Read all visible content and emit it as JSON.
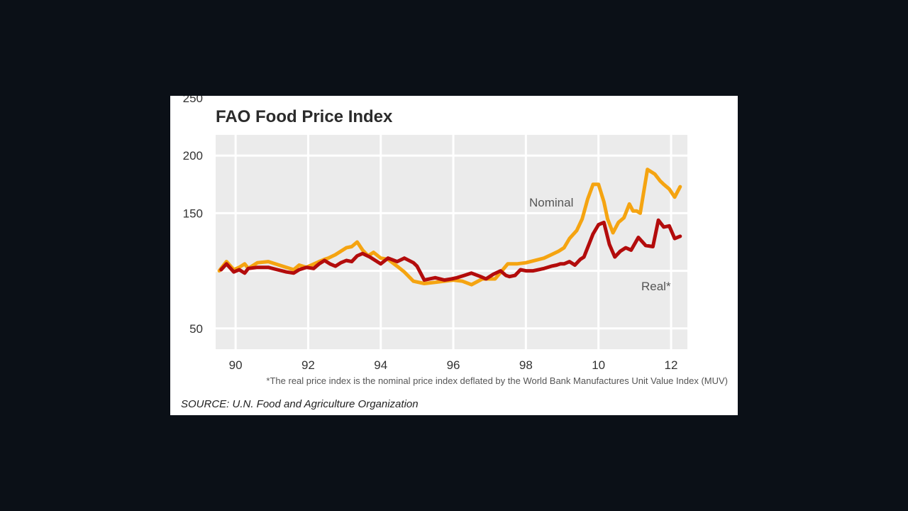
{
  "chart_data": {
    "type": "line",
    "title": "FAO Food Price Index",
    "xlabel": "",
    "ylabel": "",
    "x_tick_labels": [
      "90",
      "92",
      "94",
      "96",
      "98",
      "10",
      "12"
    ],
    "x_tick_years": [
      1990,
      1992,
      1994,
      1996,
      1998,
      2000,
      2002
    ],
    "y_ticks": [
      50,
      100,
      150,
      200,
      250
    ],
    "y_tick_labels": [
      "50",
      "",
      "150",
      "200",
      "250"
    ],
    "xlim": [
      1989.45,
      2002.45
    ],
    "ylim": [
      32,
      218
    ],
    "grid": true,
    "series": [
      {
        "name": "Nominal",
        "color": "#f5a411",
        "label": "Nominal",
        "x": [
          1989.55,
          1989.75,
          1989.95,
          1990.1,
          1990.25,
          1990.35,
          1990.6,
          1990.9,
          1991.3,
          1991.6,
          1991.75,
          1991.95,
          1992.3,
          1992.45,
          1992.55,
          1992.75,
          1992.9,
          1993.05,
          1993.2,
          1993.35,
          1993.5,
          1993.65,
          1993.8,
          1994.0,
          1994.2,
          1994.45,
          1994.65,
          1994.9,
          1995.2,
          1995.5,
          1996.0,
          1996.25,
          1996.5,
          1996.8,
          1997.15,
          1997.5,
          1997.75,
          1998.0,
          1998.5,
          1998.7,
          1998.9,
          1999.05,
          1999.2,
          1999.4,
          1999.55,
          1999.7,
          1999.85,
          2000.0,
          2000.15,
          2000.25,
          2000.4,
          2000.55,
          2000.7,
          2000.85,
          2000.95,
          2001.05,
          2001.15,
          2001.35,
          2001.55,
          2001.7,
          2001.8,
          2001.95,
          2002.1,
          2002.25
        ],
        "y": [
          100,
          108,
          101,
          103,
          106,
          102,
          107,
          108,
          104,
          101,
          105,
          103,
          108,
          110,
          111,
          114,
          117,
          120,
          121,
          125,
          118,
          113,
          116,
          111,
          110,
          104,
          99,
          91,
          89,
          90,
          92,
          91,
          88,
          93,
          93,
          106,
          106,
          107,
          111,
          114,
          117,
          120,
          128,
          135,
          145,
          162,
          175,
          175,
          160,
          145,
          133,
          142,
          146,
          158,
          152,
          152,
          150,
          188,
          184,
          178,
          175,
          171,
          164,
          173
        ]
      },
      {
        "name": "Real*",
        "color": "#b30c0c",
        "label": "Real*",
        "x": [
          1989.6,
          1989.75,
          1989.95,
          1990.1,
          1990.25,
          1990.35,
          1990.6,
          1990.9,
          1991.15,
          1991.4,
          1991.6,
          1991.75,
          1991.95,
          1992.15,
          1992.3,
          1992.45,
          1992.6,
          1992.75,
          1992.9,
          1993.05,
          1993.2,
          1993.35,
          1993.5,
          1993.7,
          1994.0,
          1994.2,
          1994.45,
          1994.65,
          1994.9,
          1995.0,
          1995.2,
          1995.5,
          1995.75,
          1995.95,
          1996.1,
          1996.3,
          1996.5,
          1996.75,
          1996.9,
          1997.1,
          1997.3,
          1997.45,
          1997.55,
          1997.7,
          1997.85,
          1998.0,
          1998.2,
          1998.5,
          1998.7,
          1998.85,
          1998.95,
          1999.05,
          1999.2,
          1999.35,
          1999.5,
          1999.6,
          1999.75,
          1999.85,
          2000.0,
          2000.15,
          2000.3,
          2000.45,
          2000.6,
          2000.75,
          2000.9,
          2001.1,
          2001.3,
          2001.5,
          2001.65,
          2001.8,
          2001.95,
          2002.1,
          2002.25
        ],
        "y": [
          101,
          106,
          99,
          101,
          98,
          102,
          103,
          103,
          101,
          99,
          98,
          101,
          103,
          102,
          106,
          109,
          106,
          104,
          107,
          109,
          108,
          113,
          115,
          112,
          106,
          111,
          108,
          111,
          107,
          104,
          92,
          94,
          92,
          93,
          94,
          96,
          98,
          95,
          93,
          97,
          100,
          96,
          95,
          96,
          101,
          100,
          100,
          102,
          104,
          105,
          106,
          106,
          108,
          105,
          110,
          112,
          124,
          132,
          140,
          142,
          123,
          112,
          117,
          120,
          118,
          129,
          122,
          121,
          144,
          138,
          139,
          128,
          130
        ]
      }
    ]
  },
  "footnote": "*The real price index is the nominal price index deflated by the World Bank Manufactures Unit Value Index (MUV)",
  "source": "SOURCE: U.N. Food and Agriculture Organization"
}
